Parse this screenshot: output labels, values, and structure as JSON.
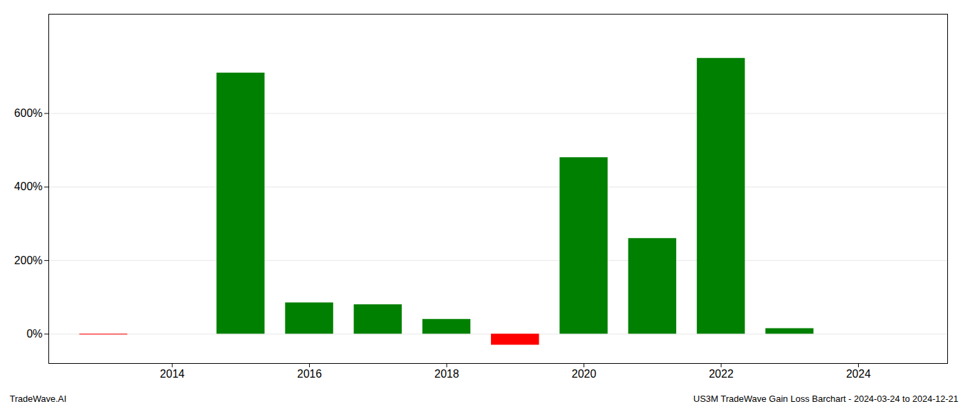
{
  "chart_data": {
    "type": "bar",
    "x": [
      2013,
      2014,
      2015,
      2016,
      2017,
      2018,
      2019,
      2020,
      2021,
      2022,
      2023
    ],
    "values": [
      -2.0,
      0.0,
      710.0,
      85.0,
      80.0,
      40.0,
      -30.0,
      480.0,
      260.0,
      750.0,
      15.0
    ],
    "colors": [
      "#ff0000",
      "#008000",
      "#008000",
      "#008000",
      "#008000",
      "#008000",
      "#ff0000",
      "#008000",
      "#008000",
      "#008000",
      "#008000"
    ],
    "xlim": [
      2012.2,
      2025.3
    ],
    "xticks": [
      2014,
      2016,
      2018,
      2020,
      2022,
      2024
    ],
    "ylim": [
      -80,
      870
    ],
    "yticks": [
      {
        "value": 0,
        "label": "0%"
      },
      {
        "value": 200,
        "label": "200%"
      },
      {
        "value": 400,
        "label": "400%"
      },
      {
        "value": 600,
        "label": "600%"
      }
    ],
    "grid": true,
    "annotations": [
      "TradeWave.AI",
      "US3M TradeWave Gain Loss Barchart - 2024-03-24 to 2024-12-21"
    ]
  }
}
